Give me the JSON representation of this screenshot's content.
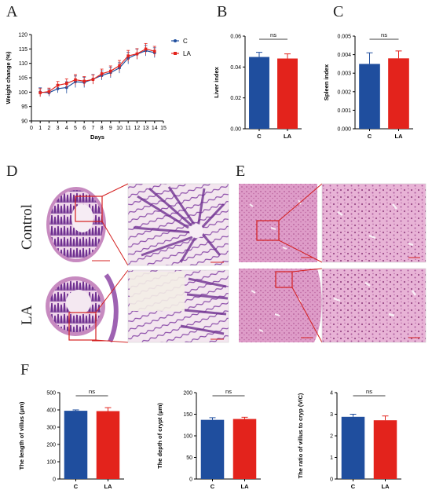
{
  "panels": {
    "a": "A",
    "b": "B",
    "c": "C",
    "d": "D",
    "e": "E",
    "f": "F"
  },
  "colors": {
    "control": "#1f4e9e",
    "la": "#e3231c",
    "zoom_box": "#d42020",
    "he_pink": "#e6a9d0",
    "he_purple": "#7d3f9e",
    "liver_pink": "#d77fb6"
  },
  "row_labels": {
    "control": "Control",
    "la": "LA"
  },
  "chart_data": [
    {
      "id": "A",
      "type": "line",
      "xlabel": "Days",
      "ylabel": "Weight change (%)",
      "xlim": [
        0,
        15
      ],
      "ylim": [
        90,
        120
      ],
      "xticks": [
        0,
        1,
        2,
        3,
        4,
        5,
        6,
        7,
        8,
        9,
        10,
        11,
        12,
        13,
        14,
        15
      ],
      "yticks": [
        90,
        95,
        100,
        105,
        110,
        115,
        120
      ],
      "legend_position": "top-right",
      "series": [
        {
          "name": "C",
          "marker": "circle",
          "x": [
            1,
            2,
            3,
            4,
            5,
            6,
            7,
            8,
            9,
            10,
            11,
            12,
            13,
            14
          ],
          "y": [
            100.0,
            99.8,
            101.2,
            101.6,
            103.6,
            103.4,
            104.5,
            105.8,
            106.8,
            108.4,
            111.8,
            113.2,
            114.4,
            113.7
          ],
          "err": [
            1.5,
            1.2,
            1.4,
            2.0,
            2.0,
            1.8,
            1.6,
            1.6,
            1.8,
            1.8,
            2.0,
            1.8,
            1.8,
            1.7
          ]
        },
        {
          "name": "LA",
          "marker": "square",
          "x": [
            1,
            2,
            3,
            4,
            5,
            6,
            7,
            8,
            9,
            10,
            11,
            12,
            13,
            14
          ],
          "y": [
            99.8,
            100.2,
            102.4,
            103.0,
            104.3,
            103.8,
            104.4,
            106.4,
            107.3,
            109.2,
            112.6,
            113.3,
            115.0,
            114.2
          ],
          "err": [
            1.4,
            1.2,
            1.3,
            1.6,
            1.8,
            1.6,
            1.6,
            1.6,
            1.8,
            1.8,
            1.9,
            1.8,
            1.9,
            1.7
          ]
        }
      ]
    },
    {
      "id": "B",
      "type": "bar",
      "ylabel": "Liver index",
      "categories": [
        "C",
        "LA"
      ],
      "values": [
        0.0465,
        0.0455
      ],
      "err": [
        0.003,
        0.003
      ],
      "ylim": [
        0,
        0.06
      ],
      "yticks": [
        "0.00",
        "0.02",
        "0.04",
        "0.06"
      ],
      "annotation": "ns"
    },
    {
      "id": "C",
      "type": "bar",
      "ylabel": "Spleen index",
      "categories": [
        "C",
        "LA"
      ],
      "values": [
        0.0035,
        0.0038
      ],
      "err": [
        0.0006,
        0.0004
      ],
      "ylim": [
        0,
        0.005
      ],
      "yticks": [
        "0.000",
        "0.001",
        "0.002",
        "0.003",
        "0.004",
        "0.005"
      ],
      "annotation": "ns"
    },
    {
      "id": "F1",
      "type": "bar",
      "ylabel": "The length of villus (μm)",
      "categories": [
        "C",
        "LA"
      ],
      "values": [
        395,
        393
      ],
      "err": [
        5,
        20
      ],
      "ylim": [
        0,
        500
      ],
      "yticks": [
        "0",
        "100",
        "200",
        "300",
        "400",
        "500"
      ],
      "annotation": "ns"
    },
    {
      "id": "F2",
      "type": "bar",
      "ylabel": "The depth of crypt (μm)",
      "categories": [
        "C",
        "LA"
      ],
      "values": [
        137,
        139
      ],
      "err": [
        5,
        4
      ],
      "ylim": [
        0,
        200
      ],
      "yticks": [
        "0",
        "50",
        "100",
        "150",
        "200"
      ],
      "annotation": "ns"
    },
    {
      "id": "F3",
      "type": "bar",
      "ylabel": "The ratio of villus to cryp (V/C)",
      "categories": [
        "C",
        "LA"
      ],
      "values": [
        2.88,
        2.72
      ],
      "err": [
        0.12,
        0.2
      ],
      "ylim": [
        0,
        4
      ],
      "yticks": [
        "0",
        "1",
        "2",
        "3",
        "4"
      ],
      "annotation": "ns"
    }
  ]
}
